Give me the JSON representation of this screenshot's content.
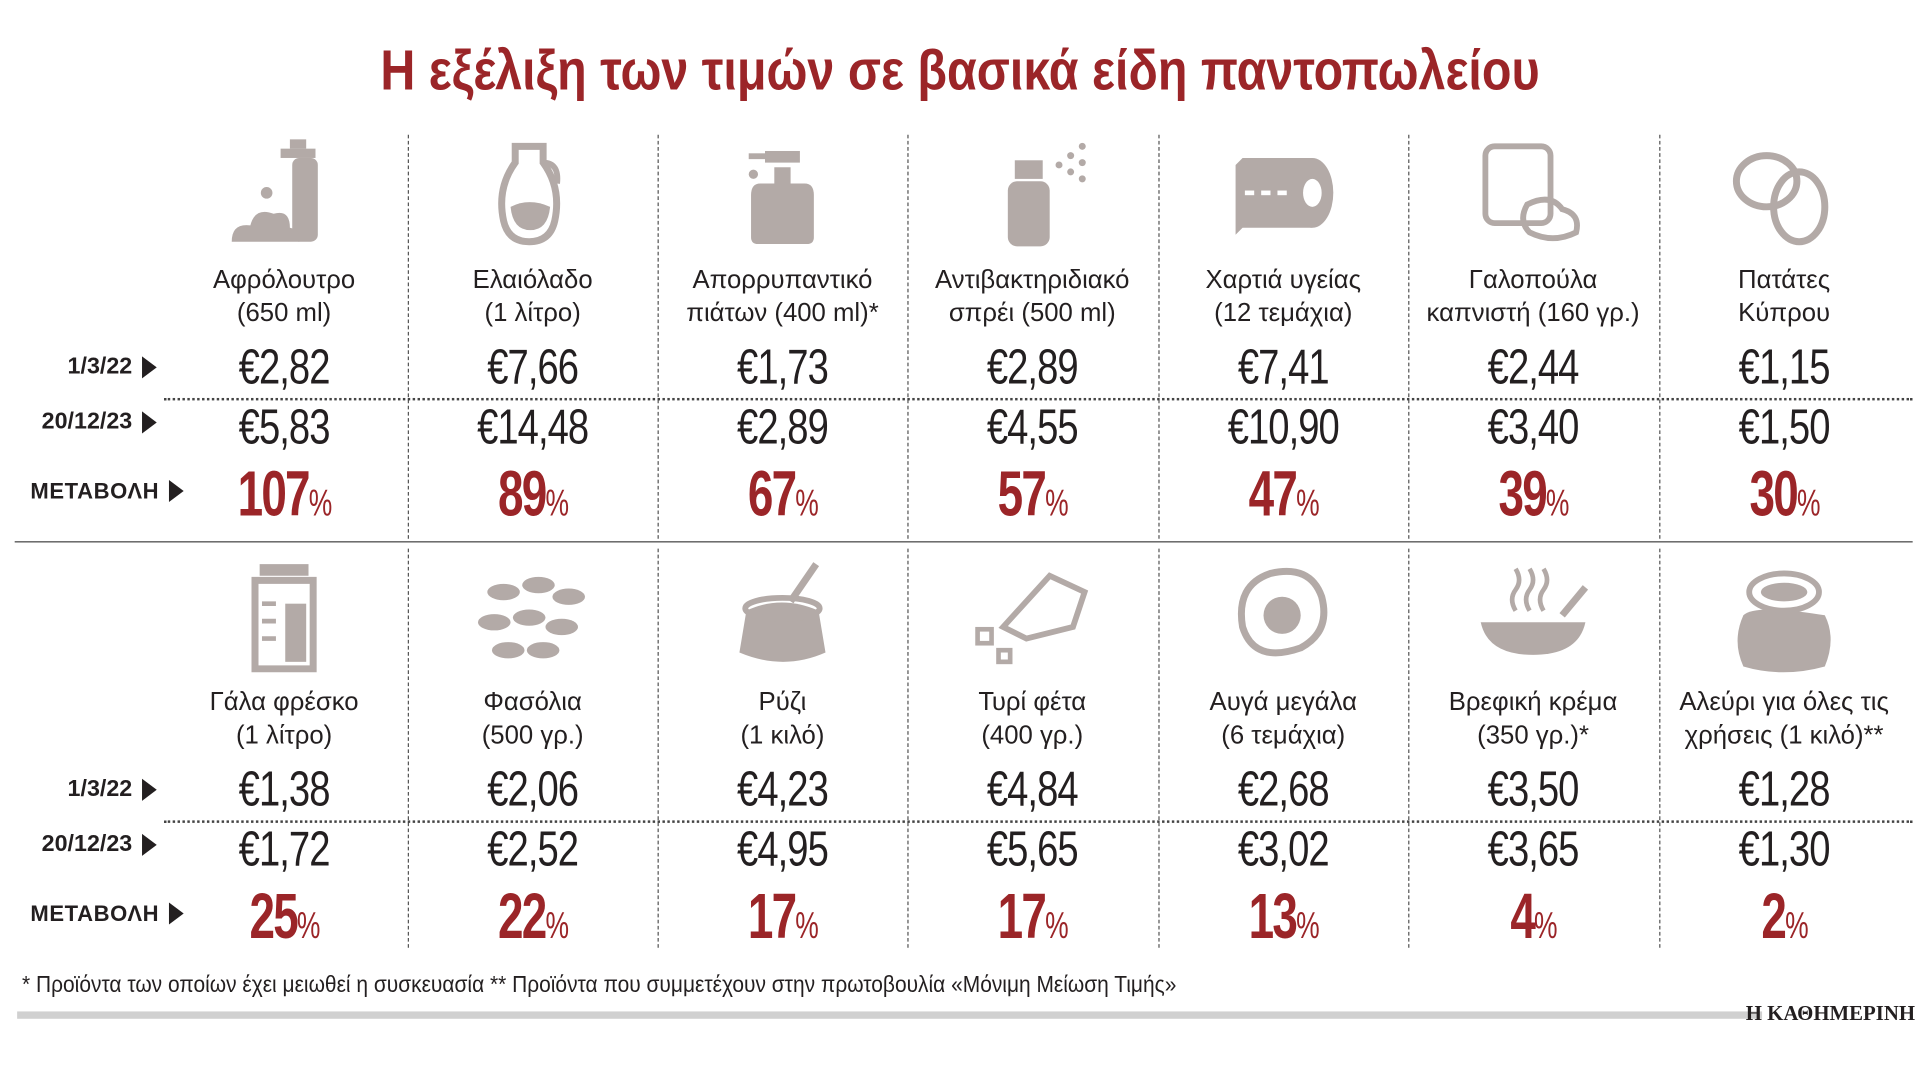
{
  "title": "Η εξέλιξη των τιμών σε βασικά είδη παντοπωλείου",
  "row_labels": {
    "date1": "1/3/22",
    "date2": "20/12/23",
    "change": "ΜΕΤΑΒΟΛΗ"
  },
  "percent_sign": "%",
  "footnote": "* Προϊόντα των οποίων έχει μειωθεί η συσκευασία ** Προϊόντα που συμμετέχουν στην πρωτοβουλία «Μόνιμη Μείωση Τιμής»",
  "logo": "Η ΚΑΘΗΜΕΡΙΝΗ",
  "colors": {
    "accent": "#9b2528",
    "icon": "#b3aaa7",
    "text": "#231f20"
  },
  "chart_data": {
    "type": "table",
    "title": "Η εξέλιξη των τιμών σε βασικά είδη παντοπωλείου",
    "columns": [
      "1/3/22",
      "20/12/23",
      "ΜΕΤΑΒΟΛΗ"
    ],
    "products": [
      {
        "name1": "Αφρόλουτρο",
        "name2": "(650 ml)",
        "icon": "shower-gel-icon",
        "p1": "€2,82",
        "p2": "€5,83",
        "change": "107"
      },
      {
        "name1": "Ελαιόλαδο",
        "name2": "(1 λίτρο)",
        "icon": "olive-oil-icon",
        "p1": "€7,66",
        "p2": "€14,48",
        "change": "89"
      },
      {
        "name1": "Απορρυπαντικό",
        "name2": "πιάτων (400 ml)*",
        "icon": "dish-soap-icon",
        "p1": "€1,73",
        "p2": "€2,89",
        "change": "67"
      },
      {
        "name1": "Αντιβακτηριδιακό",
        "name2": "σπρέι (500 ml)",
        "icon": "spray-icon",
        "p1": "€2,89",
        "p2": "€4,55",
        "change": "57"
      },
      {
        "name1": "Χαρτιά υγείας",
        "name2": "(12 τεμάχια)",
        "icon": "toilet-paper-icon",
        "p1": "€7,41",
        "p2": "€10,90",
        "change": "47"
      },
      {
        "name1": "Γαλοπούλα",
        "name2": "καπνιστή (160 γρ.)",
        "icon": "turkey-slices-icon",
        "p1": "€2,44",
        "p2": "€3,40",
        "change": "39"
      },
      {
        "name1": "Πατάτες",
        "name2": "Κύπρου",
        "icon": "potato-icon",
        "p1": "€1,15",
        "p2": "€1,50",
        "change": "30"
      },
      {
        "name1": "Γάλα φρέσκο",
        "name2": "(1 λίτρο)",
        "icon": "milk-carton-icon",
        "p1": "€1,38",
        "p2": "€1,72",
        "change": "25"
      },
      {
        "name1": "Φασόλια",
        "name2": "(500 γρ.)",
        "icon": "beans-icon",
        "p1": "€2,06",
        "p2": "€2,52",
        "change": "22"
      },
      {
        "name1": "Ρύζι",
        "name2": "(1 κιλό)",
        "icon": "rice-sack-icon",
        "p1": "€4,23",
        "p2": "€4,95",
        "change": "17"
      },
      {
        "name1": "Τυρί φέτα",
        "name2": "(400 γρ.)",
        "icon": "feta-cheese-icon",
        "p1": "€4,84",
        "p2": "€5,65",
        "change": "17"
      },
      {
        "name1": "Αυγά μεγάλα",
        "name2": "(6 τεμάχια)",
        "icon": "egg-icon",
        "p1": "€2,68",
        "p2": "€3,02",
        "change": "13"
      },
      {
        "name1": "Βρεφική κρέμα",
        "name2": "(350 γρ.)*",
        "icon": "baby-cereal-bowl-icon",
        "p1": "€3,50",
        "p2": "€3,65",
        "change": "4"
      },
      {
        "name1": "Αλεύρι για όλες τις",
        "name2": "χρήσεις (1 κιλό)**",
        "icon": "flour-sack-icon",
        "p1": "€1,28",
        "p2": "€1,30",
        "change": "2"
      }
    ]
  }
}
